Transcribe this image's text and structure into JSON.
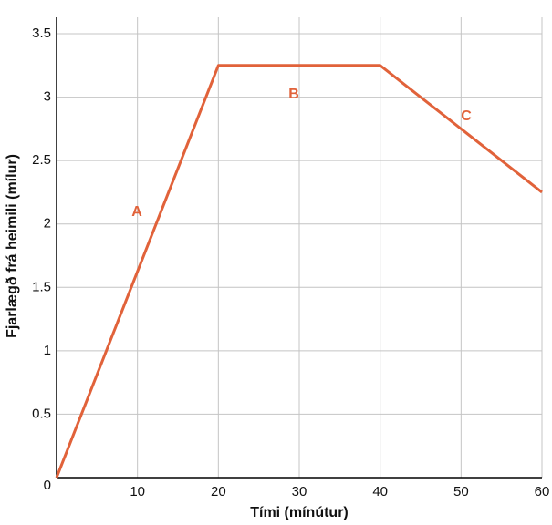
{
  "chart_data": {
    "type": "line",
    "x_label": "Tími (mínútur)",
    "y_label": "Fjarlægð frá heimili (mílur)",
    "x": [
      0,
      20,
      40,
      60
    ],
    "series": [
      {
        "color": "#e1623a",
        "values": [
          0,
          3.25,
          3.25,
          2.25
        ]
      }
    ],
    "xlim": [
      0,
      60
    ],
    "xticks": [
      10,
      20,
      30,
      40,
      50,
      60
    ],
    "ylim": [
      0,
      3.5
    ],
    "yticks": [
      0,
      0.5,
      1,
      1.5,
      2,
      2.5,
      3,
      3.5
    ],
    "grid": true,
    "annotations": [
      "A",
      "B",
      "C"
    ]
  }
}
